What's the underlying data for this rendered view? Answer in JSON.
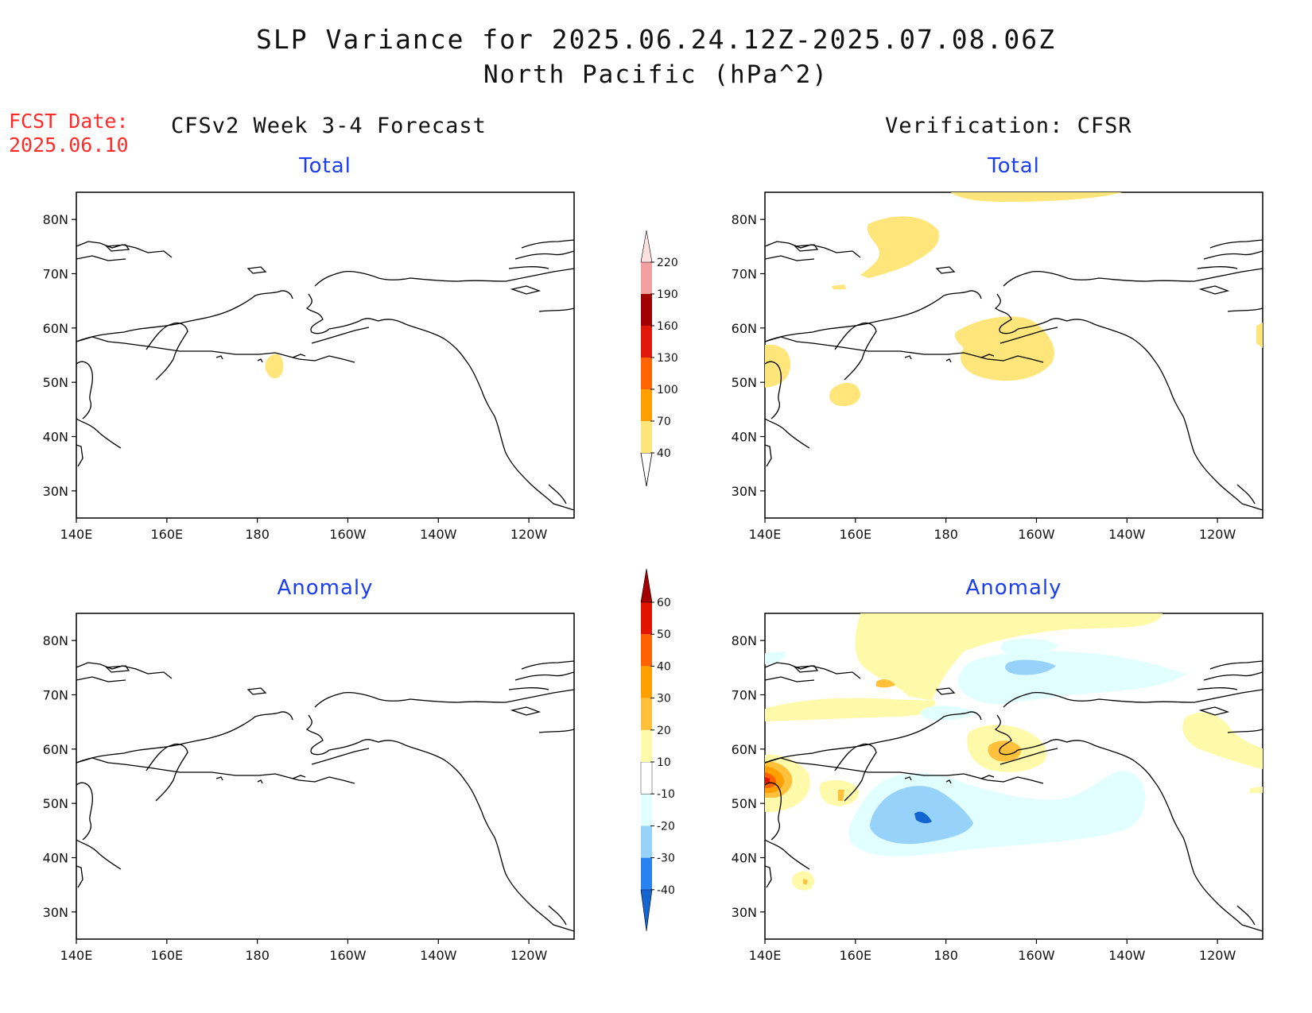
{
  "header": {
    "title_line1": "SLP Variance for 2025.06.24.12Z-2025.07.08.06Z",
    "title_line2": "North Pacific (hPa^2)",
    "fcst_label": "FCST Date:",
    "fcst_date": "2025.06.10",
    "left_column": "CFSv2 Week 3-4 Forecast",
    "right_column": "Verification: CFSR"
  },
  "panels": {
    "fc_total_title": "Total",
    "fc_anom_title": "Anomaly",
    "ver_total_title": "Total",
    "ver_anom_title": "Anomaly"
  },
  "map": {
    "lon_labels": [
      "140E",
      "160E",
      "180",
      "160W",
      "140W",
      "120W"
    ],
    "lat_labels": [
      "80N",
      "70N",
      "60N",
      "50N",
      "40N",
      "30N"
    ],
    "lon_values": [
      140,
      160,
      180,
      200,
      220,
      240
    ],
    "lat_values": [
      80,
      70,
      60,
      50,
      40,
      30
    ],
    "lon_range": [
      140,
      250
    ],
    "lat_range": [
      25,
      85
    ]
  },
  "colorbar_total": {
    "levels": [
      "40",
      "70",
      "100",
      "130",
      "160",
      "190",
      "220"
    ],
    "colors": [
      "#ffe57a",
      "#ffa000",
      "#ff6400",
      "#e01a0a",
      "#a00000",
      "#f2a0a0",
      "#fde0e0"
    ]
  },
  "colorbar_anomaly": {
    "levels": [
      "-40",
      "-30",
      "-20",
      "-10",
      "10",
      "20",
      "30",
      "40",
      "50",
      "60"
    ],
    "colors": [
      "#1464d2",
      "#2882f0",
      "#96d2fa",
      "#e1ffff",
      "#ffffff",
      "#fffaaa",
      "#ffc03c",
      "#ffa000",
      "#ff6000",
      "#e11400",
      "#a50000"
    ]
  }
}
